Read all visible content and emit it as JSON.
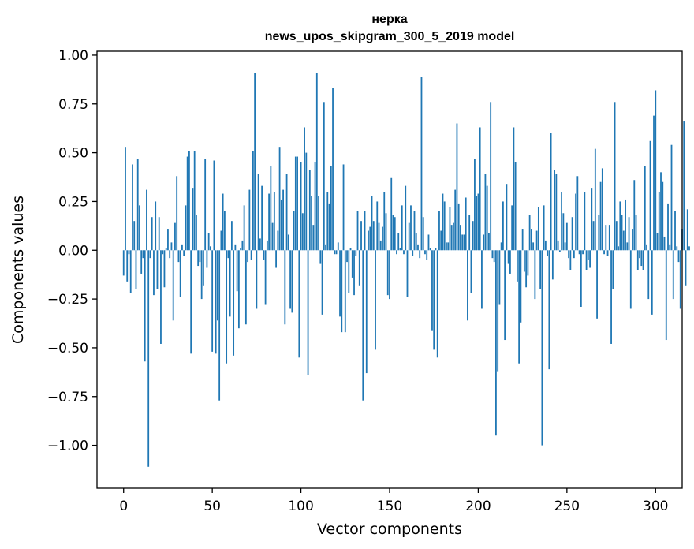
{
  "chart_data": {
    "type": "bar",
    "title_line1": "нерка",
    "title_line2": "news_upos_skipgram_300_5_2019 model",
    "xlabel": "Vector components",
    "ylabel": "Components values",
    "xlim": [
      -15,
      315
    ],
    "ylim": [
      -1.22,
      1.02
    ],
    "xticks": [
      0,
      50,
      100,
      150,
      200,
      250,
      300
    ],
    "xtick_labels": [
      "0",
      "50",
      "100",
      "150",
      "200",
      "250",
      "300"
    ],
    "yticks": [
      1.0,
      0.75,
      0.5,
      0.25,
      0.0,
      -0.25,
      -0.5,
      -0.75,
      -1.0
    ],
    "ytick_labels": [
      "1.00",
      "0.75",
      "0.50",
      "0.25",
      "0.00",
      "−0.25",
      "−0.50",
      "−0.75",
      "−1.00"
    ],
    "bar_color": "#1f77b4",
    "values": [
      -0.13,
      0.53,
      -0.16,
      -0.02,
      -0.22,
      0.44,
      0.15,
      -0.2,
      0.47,
      0.23,
      -0.12,
      -0.04,
      -0.57,
      0.31,
      -1.11,
      -0.04,
      0.17,
      -0.23,
      0.25,
      -0.2,
      0.17,
      -0.48,
      -0.02,
      -0.19,
      0.01,
      0.11,
      -0.04,
      0.04,
      -0.36,
      0.14,
      0.38,
      -0.06,
      -0.24,
      0.03,
      -0.03,
      0.23,
      0.48,
      0.51,
      -0.53,
      0.32,
      0.51,
      0.18,
      -0.08,
      -0.06,
      -0.25,
      -0.18,
      0.47,
      -0.09,
      0.09,
      0.02,
      -0.52,
      0.46,
      -0.53,
      -0.36,
      -0.77,
      0.1,
      0.29,
      0.2,
      -0.58,
      -0.04,
      -0.34,
      0.15,
      -0.54,
      0.03,
      -0.21,
      -0.4,
      0.01,
      0.05,
      0.23,
      -0.38,
      -0.06,
      0.31,
      -0.05,
      0.51,
      0.91,
      -0.3,
      0.39,
      0.06,
      0.33,
      -0.05,
      -0.28,
      0.05,
      0.29,
      0.43,
      0.14,
      0.3,
      -0.09,
      0.1,
      0.53,
      0.26,
      0.31,
      -0.38,
      0.39,
      0.08,
      -0.3,
      -0.32,
      0.2,
      0.48,
      0.48,
      -0.55,
      0.45,
      0.19,
      0.63,
      0.5,
      -0.64,
      0.41,
      0.28,
      0.13,
      0.45,
      0.91,
      0.28,
      -0.07,
      -0.33,
      0.76,
      0.03,
      0.3,
      0.24,
      0.43,
      0.83,
      -0.02,
      -0.02,
      0.04,
      -0.34,
      -0.42,
      0.44,
      -0.42,
      -0.06,
      -0.22,
      0.01,
      -0.14,
      -0.23,
      -0.03,
      0.2,
      -0.18,
      0.15,
      -0.77,
      0.2,
      -0.63,
      0.1,
      0.12,
      0.28,
      0.15,
      -0.51,
      0.25,
      0.14,
      0.05,
      0.12,
      0.3,
      0.19,
      -0.23,
      -0.25,
      0.37,
      0.18,
      0.17,
      -0.02,
      0.09,
      0.01,
      0.23,
      -0.02,
      0.33,
      -0.24,
      0.14,
      0.23,
      -0.03,
      0.2,
      0.09,
      0.03,
      -0.04,
      0.89,
      0.17,
      -0.02,
      -0.05,
      0.08,
      0.01,
      -0.41,
      -0.51,
      0.01,
      -0.55,
      0.2,
      0.1,
      0.29,
      0.25,
      0.04,
      0.04,
      0.22,
      0.13,
      0.14,
      0.31,
      0.65,
      0.24,
      0.13,
      0.08,
      0.08,
      0.27,
      -0.36,
      0.18,
      -0.22,
      0.15,
      0.47,
      0.28,
      0.29,
      0.63,
      -0.3,
      0.08,
      0.39,
      0.33,
      0.09,
      0.76,
      -0.04,
      -0.06,
      -0.95,
      -0.62,
      -0.28,
      0.04,
      0.25,
      -0.46,
      0.34,
      -0.07,
      -0.12,
      0.23,
      0.63,
      0.45,
      -0.16,
      -0.58,
      -0.37,
      0.11,
      -0.11,
      -0.19,
      -0.13,
      0.18,
      0.11,
      0.04,
      -0.25,
      0.1,
      0.22,
      -0.2,
      -1.0,
      0.23,
      0.05,
      -0.03,
      -0.61,
      0.6,
      -0.15,
      0.41,
      0.39,
      0.05,
      -0.01,
      0.3,
      0.19,
      0.04,
      0.14,
      -0.04,
      -0.1,
      0.17,
      -0.04,
      0.29,
      0.38,
      -0.02,
      -0.29,
      -0.02,
      0.3,
      -0.1,
      -0.05,
      -0.09,
      0.32,
      0.15,
      0.52,
      -0.35,
      0.18,
      0.35,
      0.42,
      -0.02,
      0.13,
      -0.03,
      0.13,
      -0.48,
      -0.2,
      0.76,
      0.15,
      0.02,
      0.25,
      0.18,
      0.1,
      0.26,
      0.04,
      0.17,
      -0.3,
      0.11,
      0.36,
      0.18,
      -0.1,
      -0.04,
      -0.08,
      -0.1,
      0.43,
      0.03,
      -0.25,
      0.56,
      -0.33,
      0.69,
      0.82,
      0.09,
      0.3,
      0.4,
      0.35,
      0.07,
      -0.46,
      0.24,
      0.03,
      0.54,
      -0.25,
      0.2,
      0.02,
      -0.06,
      -0.3,
      0.11,
      0.66,
      -0.18,
      0.21,
      0.02
    ]
  }
}
